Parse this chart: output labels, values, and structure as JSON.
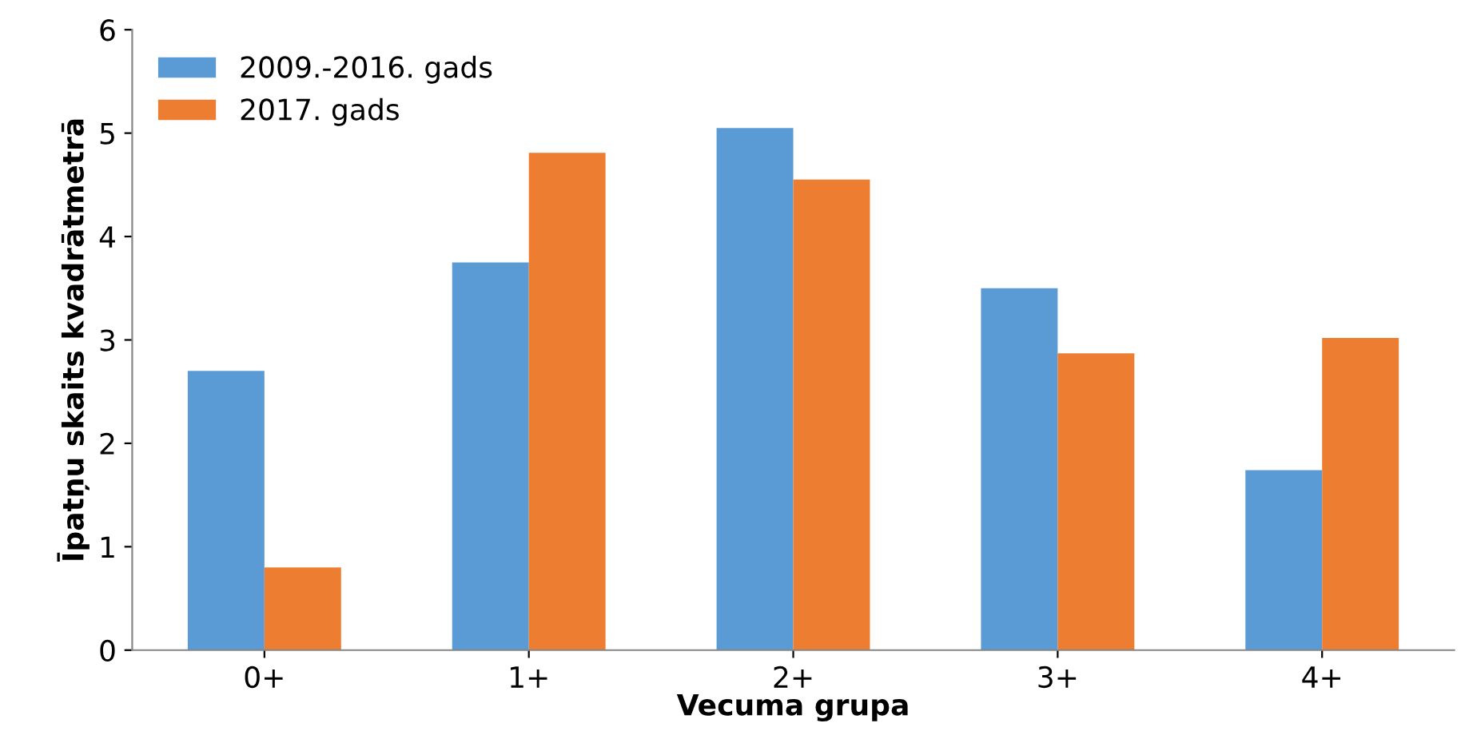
{
  "chart_data": {
    "type": "bar",
    "xlabel": "Vecuma grupa",
    "ylabel": "Īpatņu skaits kvadrātmetrā",
    "categories": [
      "0+",
      "1+",
      "2+",
      "3+",
      "4+"
    ],
    "series": [
      {
        "name": "2009.-2016. gads",
        "color": "#5b9bd5",
        "values": [
          2.7,
          3.75,
          5.05,
          3.5,
          1.74
        ]
      },
      {
        "name": "2017. gads",
        "color": "#ed7d31",
        "values": [
          0.8,
          4.81,
          4.55,
          2.87,
          3.02
        ]
      }
    ],
    "ylim": [
      0,
      6
    ],
    "yticks": [
      0,
      1,
      2,
      3,
      4,
      5,
      6
    ],
    "grid": false,
    "legend": "top left"
  }
}
